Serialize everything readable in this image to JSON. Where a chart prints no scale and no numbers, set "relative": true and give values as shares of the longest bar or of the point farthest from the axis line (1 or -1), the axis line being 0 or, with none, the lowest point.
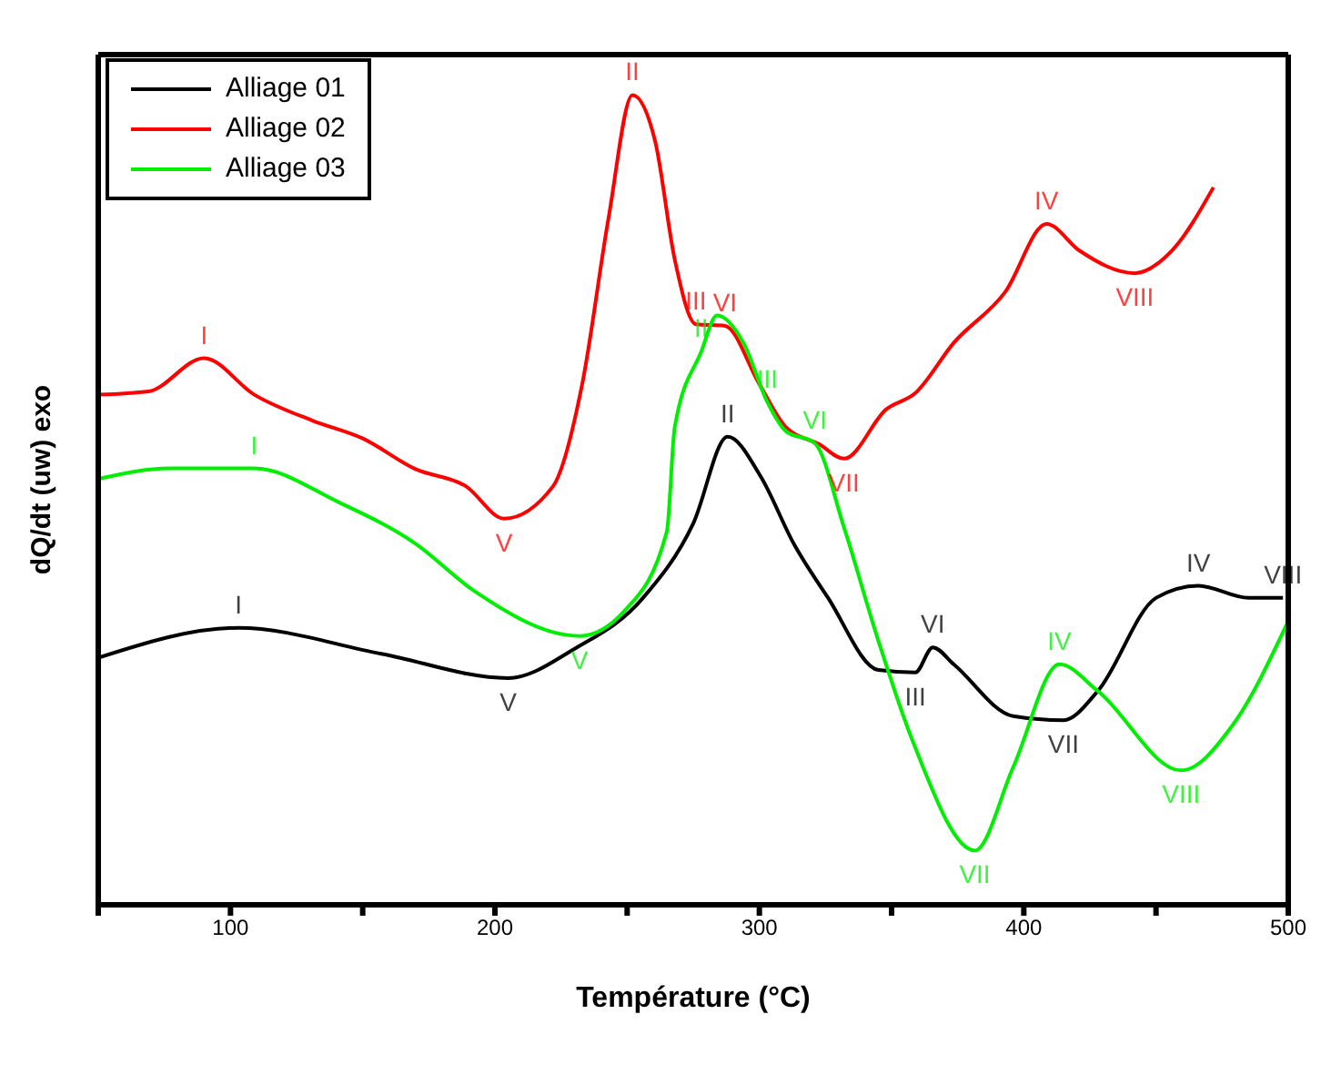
{
  "chart_data": {
    "type": "line",
    "relative": true,
    "xlabel": "Température (°C)",
    "ylabel": "dQ/dt (uw) exo",
    "xlim": [
      50,
      500
    ],
    "xticks": [
      {
        "value": 50,
        "label": null
      },
      100,
      {
        "value": 150,
        "label": null
      },
      200,
      {
        "value": 250,
        "label": null
      },
      300,
      {
        "value": 350,
        "label": null
      },
      400,
      {
        "value": 450,
        "label": null
      },
      500
    ],
    "legend": "top left",
    "marker": "none",
    "line_style": "solid",
    "series": [
      {
        "name": "Alliage 01",
        "color": "#000000",
        "x": [
          50,
          103,
          157,
          205,
          230,
          256,
          275,
          288,
          300.5,
          313,
          326,
          345,
          359,
          365.6,
          373.5,
          396,
          415,
          428,
          450,
          466,
          485,
          498
        ],
        "values": [
          0.305,
          0.342,
          0.31,
          0.28,
          0.316,
          0.379,
          0.471,
          0.578,
          0.529,
          0.446,
          0.379,
          0.29,
          0.287,
          0.318,
          0.297,
          0.233,
          0.228,
          0.264,
          0.379,
          0.394,
          0.379,
          0.379
        ]
      },
      {
        "name": "Alliage 02",
        "color": "#ff0000",
        "x": [
          50,
          69,
          90,
          109,
          131,
          150,
          170,
          189,
          203.5,
          222,
          233,
          243,
          252,
          260.6,
          268,
          276,
          287,
          300,
          310,
          322.5,
          332,
          348,
          359,
          373.5,
          393,
          408.6,
          421,
          442,
          456,
          471.7
        ],
        "values": [
          0.63,
          0.634,
          0.675,
          0.63,
          0.598,
          0.576,
          0.538,
          0.517,
          0.477,
          0.517,
          0.643,
          0.849,
          1.0,
          0.943,
          0.797,
          0.717,
          0.715,
          0.643,
          0.59,
          0.569,
          0.551,
          0.612,
          0.632,
          0.694,
          0.757,
          0.841,
          0.808,
          0.78,
          0.808,
          0.886
        ]
      },
      {
        "name": "Alliage 03",
        "color": "#00ee00",
        "x": [
          50,
          77,
          109,
          141,
          170,
          192,
          232,
          249,
          265,
          268,
          278,
          284,
          294,
          303,
          310,
          321,
          332,
          345,
          358,
          381.5,
          396,
          413.5,
          428,
          459.5,
          479,
          499.5
        ],
        "values": [
          0.526,
          0.539,
          0.539,
          0.497,
          0.446,
          0.388,
          0.332,
          0.363,
          0.461,
          0.59,
          0.683,
          0.728,
          0.694,
          0.621,
          0.585,
          0.57,
          0.466,
          0.326,
          0.202,
          0.067,
          0.17,
          0.297,
          0.264,
          0.166,
          0.222,
          0.347
        ]
      }
    ],
    "annotations": [
      {
        "text": "I",
        "x": 90,
        "y": 0.675
      },
      {
        "text": "II",
        "x": 252,
        "y": 1.0
      },
      {
        "text": "III",
        "x": 276,
        "y": 0.717
      },
      {
        "text": "VI",
        "x": 287,
        "y": 0.715
      },
      {
        "text": "V",
        "x": 203.5,
        "y": 0.477
      },
      {
        "text": "VII",
        "x": 332,
        "y": 0.551
      },
      {
        "text": "IV",
        "x": 408.6,
        "y": 0.841
      },
      {
        "text": "VIII",
        "x": 442,
        "y": 0.78
      },
      {
        "text": "I",
        "x": 109,
        "y": 0.539
      },
      {
        "text": "II",
        "x": 278,
        "y": 0.683
      },
      {
        "text": "III",
        "x": 303,
        "y": 0.621
      },
      {
        "text": "VI",
        "x": 321,
        "y": 0.57
      },
      {
        "text": "V",
        "x": 232,
        "y": 0.332
      },
      {
        "text": "VII",
        "x": 381.5,
        "y": 0.067
      },
      {
        "text": "IV",
        "x": 413.5,
        "y": 0.297
      },
      {
        "text": "VIII",
        "x": 459.5,
        "y": 0.166
      },
      {
        "text": "I",
        "x": 103,
        "y": 0.342
      },
      {
        "text": "V",
        "x": 205,
        "y": 0.28
      },
      {
        "text": "II",
        "x": 288,
        "y": 0.578
      },
      {
        "text": "III",
        "x": 359,
        "y": 0.287
      },
      {
        "text": "VI",
        "x": 365.6,
        "y": 0.318
      },
      {
        "text": "VII",
        "x": 415,
        "y": 0.228
      },
      {
        "text": "IV",
        "x": 466,
        "y": 0.394
      },
      {
        "text": "VIII",
        "x": 498,
        "y": 0.379
      }
    ]
  }
}
